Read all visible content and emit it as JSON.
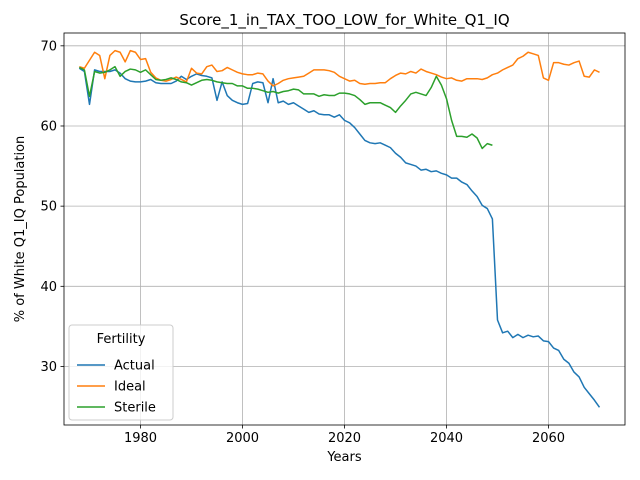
{
  "chart_data": {
    "type": "line",
    "title": "Score_1_in_TAX_TOO_LOW_for_White_Q1_IQ",
    "xlabel": "Years",
    "ylabel": "% of White Q1_IQ Population",
    "xlim": [
      1965,
      2075
    ],
    "ylim": [
      22.7,
      71.6
    ],
    "xticks": [
      1980,
      2000,
      2020,
      2040,
      2060
    ],
    "yticks": [
      30,
      40,
      50,
      60,
      70
    ],
    "grid": true,
    "legend": {
      "title": "Fertility",
      "placement": "lower-left"
    },
    "colors": {
      "Actual": "#1f77b4",
      "Ideal": "#ff7f0e",
      "Sterile": "#2ca02c"
    },
    "series": [
      {
        "name": "Actual",
        "x": [
          1968,
          1969,
          1970,
          1971,
          1972,
          1973,
          1974,
          1975,
          1976,
          1977,
          1978,
          1979,
          1980,
          1981,
          1982,
          1983,
          1984,
          1985,
          1986,
          1987,
          1988,
          1989,
          1990,
          1991,
          1992,
          1993,
          1994,
          1995,
          1996,
          1997,
          1998,
          1999,
          2000,
          2001,
          2002,
          2003,
          2004,
          2005,
          2006,
          2007,
          2008,
          2009,
          2010,
          2011,
          2012,
          2013,
          2014,
          2015,
          2016,
          2017,
          2018,
          2019,
          2020,
          2021,
          2022,
          2023,
          2024,
          2025,
          2026,
          2027,
          2028,
          2029,
          2030,
          2031,
          2032,
          2033,
          2034,
          2035,
          2036,
          2037,
          2038,
          2039,
          2040,
          2041,
          2042,
          2043,
          2044,
          2045,
          2046,
          2047,
          2048,
          2049,
          2050,
          2051,
          2052,
          2053,
          2054,
          2055,
          2056,
          2057,
          2058,
          2059,
          2060,
          2061,
          2062,
          2063,
          2064,
          2065,
          2066,
          2067,
          2068,
          2069,
          2070
        ],
        "y": [
          67.2,
          66.8,
          62.7,
          67.0,
          66.8,
          66.8,
          66.8,
          67.0,
          66.6,
          65.9,
          65.6,
          65.5,
          65.5,
          65.6,
          65.8,
          65.4,
          65.3,
          65.3,
          65.3,
          65.6,
          66.2,
          65.8,
          66.2,
          66.5,
          66.3,
          66.2,
          66.0,
          63.2,
          65.5,
          63.8,
          63.2,
          62.9,
          62.7,
          62.8,
          65.3,
          65.5,
          65.4,
          62.9,
          65.9,
          62.9,
          63.1,
          62.7,
          62.9,
          62.5,
          62.1,
          61.7,
          61.9,
          61.5,
          61.4,
          61.4,
          61.1,
          61.4,
          60.7,
          60.4,
          59.8,
          59.0,
          58.2,
          57.9,
          57.8,
          57.9,
          57.6,
          57.3,
          56.6,
          56.1,
          55.4,
          55.2,
          55.0,
          54.5,
          54.6,
          54.3,
          54.4,
          54.1,
          53.9,
          53.5,
          53.5,
          53.0,
          52.7,
          51.9,
          51.2,
          50.1,
          49.7,
          48.4,
          35.8,
          34.2,
          34.4,
          33.6,
          34.0,
          33.6,
          33.9,
          33.7,
          33.8,
          33.2,
          33.1,
          32.3,
          32.0,
          30.9,
          30.4,
          29.3,
          28.7,
          27.4,
          26.6,
          25.8,
          24.9
        ]
      },
      {
        "name": "Ideal",
        "x": [
          1968,
          1969,
          1970,
          1971,
          1972,
          1973,
          1974,
          1975,
          1976,
          1977,
          1978,
          1979,
          1980,
          1981,
          1982,
          1983,
          1984,
          1985,
          1986,
          1987,
          1988,
          1989,
          1990,
          1991,
          1992,
          1993,
          1994,
          1995,
          1996,
          1997,
          1998,
          1999,
          2000,
          2001,
          2002,
          2003,
          2004,
          2005,
          2006,
          2007,
          2008,
          2009,
          2010,
          2011,
          2012,
          2013,
          2014,
          2015,
          2016,
          2017,
          2018,
          2019,
          2020,
          2021,
          2022,
          2023,
          2024,
          2025,
          2026,
          2027,
          2028,
          2029,
          2030,
          2031,
          2032,
          2033,
          2034,
          2035,
          2036,
          2037,
          2038,
          2039,
          2040,
          2041,
          2042,
          2043,
          2044,
          2045,
          2046,
          2047,
          2048,
          2049,
          2050,
          2051,
          2052,
          2053,
          2054,
          2055,
          2056,
          2057,
          2058,
          2059,
          2060,
          2061,
          2062,
          2063,
          2064,
          2065,
          2066,
          2067,
          2068,
          2069,
          2070
        ],
        "y": [
          67.4,
          67.2,
          68.2,
          69.2,
          68.8,
          65.9,
          68.8,
          69.4,
          69.2,
          68.0,
          69.4,
          69.2,
          68.3,
          68.4,
          66.7,
          66.0,
          65.7,
          65.6,
          65.8,
          66.1,
          65.8,
          65.5,
          67.2,
          66.6,
          66.5,
          67.4,
          67.6,
          66.8,
          66.9,
          67.3,
          67.0,
          66.7,
          66.5,
          66.4,
          66.4,
          66.6,
          66.5,
          65.6,
          65.0,
          65.3,
          65.7,
          65.9,
          66.0,
          66.1,
          66.2,
          66.6,
          67.0,
          67.0,
          67.0,
          66.9,
          66.7,
          66.2,
          65.9,
          65.6,
          65.7,
          65.3,
          65.2,
          65.3,
          65.3,
          65.4,
          65.4,
          65.9,
          66.3,
          66.6,
          66.5,
          66.8,
          66.6,
          67.1,
          66.8,
          66.6,
          66.4,
          66.1,
          65.9,
          66.0,
          65.7,
          65.6,
          65.9,
          65.9,
          65.9,
          65.8,
          66.0,
          66.4,
          66.6,
          67.0,
          67.3,
          67.6,
          68.4,
          68.7,
          69.2,
          69.0,
          68.8,
          66.0,
          65.7,
          67.9,
          67.9,
          67.7,
          67.6,
          67.9,
          68.1,
          66.2,
          66.1,
          67.0,
          66.7
        ]
      },
      {
        "name": "Sterile",
        "x": [
          1968,
          1969,
          1970,
          1971,
          1972,
          1973,
          1974,
          1975,
          1976,
          1977,
          1978,
          1979,
          1980,
          1981,
          1982,
          1983,
          1984,
          1985,
          1986,
          1987,
          1988,
          1989,
          1990,
          1991,
          1992,
          1993,
          1994,
          1995,
          1996,
          1997,
          1998,
          1999,
          2000,
          2001,
          2002,
          2003,
          2004,
          2005,
          2006,
          2007,
          2008,
          2009,
          2010,
          2011,
          2012,
          2013,
          2014,
          2015,
          2016,
          2017,
          2018,
          2019,
          2020,
          2021,
          2022,
          2023,
          2024,
          2025,
          2026,
          2027,
          2028,
          2029,
          2030,
          2031,
          2032,
          2033,
          2034,
          2035,
          2036,
          2037,
          2038,
          2039,
          2040,
          2041,
          2042,
          2043,
          2044,
          2045,
          2046,
          2047,
          2048,
          2049
        ],
        "y": [
          67.3,
          67.0,
          63.7,
          66.8,
          66.6,
          66.7,
          67.0,
          67.4,
          66.2,
          66.8,
          67.1,
          67.0,
          66.7,
          67.0,
          66.4,
          65.8,
          65.7,
          65.8,
          66.0,
          65.8,
          65.5,
          65.4,
          65.1,
          65.4,
          65.7,
          65.8,
          65.7,
          65.5,
          65.4,
          65.3,
          65.3,
          65.0,
          65.0,
          64.7,
          64.7,
          64.6,
          64.4,
          64.2,
          64.3,
          64.1,
          64.3,
          64.4,
          64.6,
          64.5,
          64.0,
          64.0,
          64.0,
          63.7,
          63.9,
          63.8,
          63.8,
          64.1,
          64.1,
          64.0,
          63.8,
          63.3,
          62.7,
          62.9,
          62.9,
          62.9,
          62.6,
          62.3,
          61.7,
          62.5,
          63.2,
          64.0,
          64.2,
          64.0,
          63.8,
          64.8,
          66.2,
          65.1,
          63.4,
          60.7,
          58.7,
          58.7,
          58.6,
          59.0,
          58.5,
          57.2,
          57.8,
          57.6
        ]
      }
    ]
  }
}
